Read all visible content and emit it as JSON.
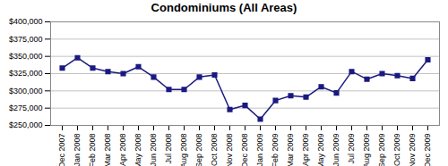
{
  "chart_data": {
    "type": "line",
    "title": "Condominiums (All Areas)",
    "categories": [
      "Dec 2007",
      "Jan 2008",
      "Feb 2008",
      "Mar 2008",
      "Apr 2008",
      "May 2008",
      "Jun 2008",
      "Jul 2008",
      "Aug 2008",
      "Sep 2008",
      "Oct 2008",
      "Nov 2008",
      "Dec 2008",
      "Jan 2009",
      "Feb 2009",
      "Mar 2009",
      "Apr 2009",
      "May 2009",
      "Jun 2009",
      "Jul 2009",
      "Aug 2009",
      "Sep 2009",
      "Oct 2009",
      "Nov 2009",
      "Dec 2009"
    ],
    "values": [
      333000,
      348000,
      333000,
      328000,
      325000,
      335000,
      320000,
      302000,
      302000,
      320000,
      323000,
      273000,
      279000,
      259000,
      286000,
      293000,
      291000,
      306000,
      297000,
      328000,
      317000,
      325000,
      322000,
      318000,
      345000
    ],
    "color": "#1a1a80",
    "marker": "square",
    "ylim": [
      250000,
      400000
    ],
    "yticks": [
      {
        "value": 250000,
        "label": "$250,000"
      },
      {
        "value": 275000,
        "label": "$275,000"
      },
      {
        "value": 300000,
        "label": "$300,000"
      },
      {
        "value": 325000,
        "label": "$325,000"
      },
      {
        "value": 350000,
        "label": "$350,000"
      },
      {
        "value": 375000,
        "label": "$375,000"
      },
      {
        "value": 400000,
        "label": "$400,000"
      }
    ],
    "grid": true
  }
}
